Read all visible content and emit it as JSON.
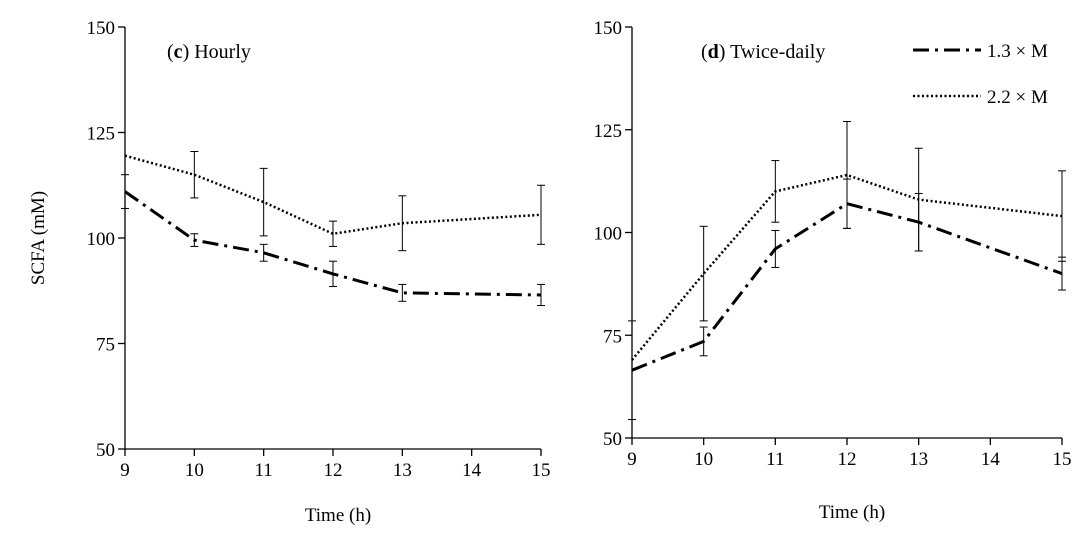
{
  "figure": {
    "colors": {
      "ink": "#000000",
      "background": "#ffffff"
    }
  },
  "chart_data": [
    {
      "type": "line",
      "panel_letter": "c",
      "title_text": " Hourly",
      "xlabel": "Time (h)",
      "ylabel": "SCFA (mM)",
      "xlim": [
        9,
        15
      ],
      "ylim": [
        50,
        150
      ],
      "xticks": [
        "9",
        "10",
        "11",
        "12",
        "13",
        "14",
        "15"
      ],
      "yticks": [
        "50",
        "75",
        "100",
        "125",
        "150"
      ],
      "legend": false,
      "grid": false,
      "x": [
        9,
        10,
        11,
        12,
        13,
        14,
        15
      ],
      "series": [
        {
          "name": "1.3 × M",
          "style": "dash-dot",
          "x": [
            9,
            10,
            11,
            12,
            13,
            15
          ],
          "values": [
            111,
            99.5,
            96.5,
            91.5,
            87,
            86.5
          ],
          "error": [
            4,
            1.5,
            2,
            3,
            2,
            2.5
          ]
        },
        {
          "name": "2.2 × M",
          "style": "dotted",
          "x": [
            9,
            10,
            11,
            12,
            13,
            15
          ],
          "values": [
            119.5,
            115,
            108.5,
            101,
            103.5,
            105.5
          ],
          "error": [
            0,
            5.5,
            8,
            3,
            6.5,
            7
          ]
        }
      ]
    },
    {
      "type": "line",
      "panel_letter": "d",
      "title_text": " Twice-daily",
      "xlabel": "Time (h)",
      "ylabel": "",
      "xlim": [
        9,
        15
      ],
      "ylim": [
        50,
        150
      ],
      "xticks": [
        "9",
        "10",
        "11",
        "12",
        "13",
        "14",
        "15"
      ],
      "yticks": [
        "50",
        "75",
        "100",
        "125",
        "150"
      ],
      "legend": true,
      "legend_position": "top-right",
      "grid": false,
      "series": [
        {
          "name": "1.3 × M",
          "style": "dash-dot",
          "x": [
            9,
            10,
            11,
            12,
            13,
            15
          ],
          "values": [
            66.5,
            73.5,
            96,
            107,
            102.5,
            90
          ],
          "error": [
            12,
            3.5,
            4.5,
            6,
            7,
            4
          ]
        },
        {
          "name": "2.2 × M",
          "style": "dotted",
          "x": [
            9,
            10,
            11,
            12,
            13,
            15
          ],
          "values": [
            69,
            90,
            110,
            114,
            108,
            104
          ],
          "error": [
            0,
            11.5,
            7.5,
            13,
            12.5,
            11
          ]
        }
      ]
    }
  ]
}
